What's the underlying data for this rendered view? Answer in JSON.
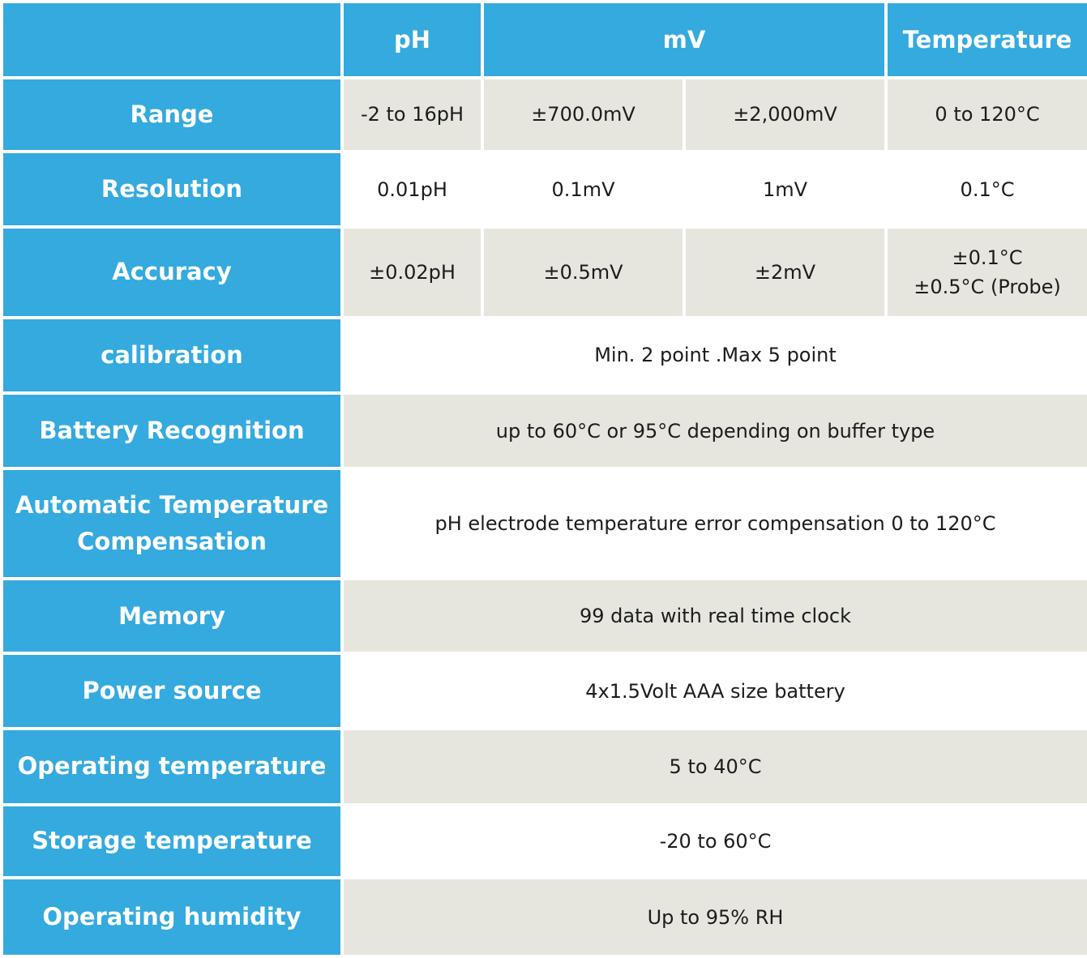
{
  "header": {
    "corner": "",
    "ph": "pH",
    "mv": "mV",
    "temperature": "Temperature"
  },
  "rows": [
    {
      "label": "Range",
      "cells": [
        "-2 to 16pH",
        "±700.0mV",
        "±2,000mV",
        "0 to 120°C"
      ]
    },
    {
      "label": "Resolution",
      "cells": [
        "0.01pH",
        "0.1mV",
        "1mV",
        "0.1°C"
      ]
    },
    {
      "label": "Accuracy",
      "cells": [
        "±0.02pH",
        "±0.5mV",
        "±2mV",
        "±0.1°C",
        "±0.5°C (Probe)"
      ]
    },
    {
      "label": "calibration",
      "value": "Min. 2 point .Max 5 point"
    },
    {
      "label": "Battery Recognition",
      "value": "up to 60°C or 95°C depending on buffer type"
    },
    {
      "label": "Automatic Temperature",
      "label2": "Compensation",
      "value": "pH electrode temperature error compensation 0 to 120°C"
    },
    {
      "label": "Memory",
      "value": "99 data with real time clock"
    },
    {
      "label": "Power source",
      "value": "4x1.5Volt AAA size battery"
    },
    {
      "label": "Operating temperature",
      "value": "5 to 40°C"
    },
    {
      "label": "Storage temperature",
      "value": "-20 to 60°C"
    },
    {
      "label": "Operating humidity",
      "value": "Up to 95% RH"
    }
  ],
  "colors": {
    "header_blue": "#34aadf",
    "shaded_cell": "#e6e6df",
    "text_dark": "#1c1c1c",
    "text_white": "#ffffff"
  }
}
